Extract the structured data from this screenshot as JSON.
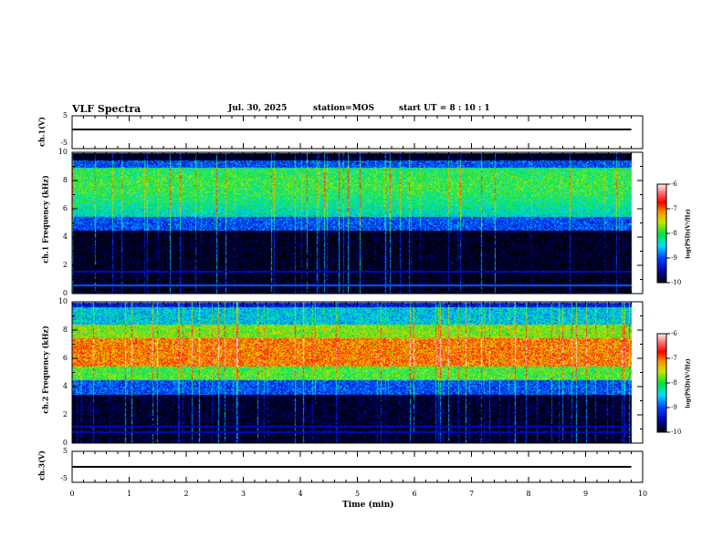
{
  "header": {
    "title": "VLF Spectra",
    "date": "Jul. 30, 2025",
    "station": "station=MOS",
    "start": "start UT =  8 : 10 : 1"
  },
  "chart_data": [
    {
      "type": "line",
      "name": "ch1-waveform",
      "ylabel": "ch.1(V)",
      "ylim": [
        -5,
        5
      ],
      "yticks": [
        "5",
        "-5"
      ],
      "xlim": [
        0,
        10
      ],
      "description_value": "flat near 0 V"
    },
    {
      "type": "heatmap",
      "name": "ch1-spectrogram",
      "ylabel": "ch.1 Frequency (kHz)",
      "ylim": [
        0,
        10
      ],
      "yticks": [
        "0",
        "2",
        "4",
        "6",
        "8",
        "10"
      ],
      "xlim": [
        0,
        9.8
      ],
      "colorbar": {
        "label": "log(PSD)(V²/Hz)",
        "range": [
          -10,
          -6
        ],
        "ticks": [
          "-6",
          "-7",
          "-8",
          "-9",
          "-10"
        ]
      },
      "bands": [
        {
          "from_khz": 5,
          "to_khz": 9.5,
          "level": -8.2
        },
        {
          "from_khz": 0,
          "to_khz": 4.5,
          "level": -10
        }
      ],
      "lines_khz": [
        0.6,
        1.6
      ]
    },
    {
      "type": "heatmap",
      "name": "ch2-spectrogram",
      "ylabel": "ch.2 Frequency (kHz)",
      "ylim": [
        0,
        10
      ],
      "yticks": [
        "0",
        "2",
        "4",
        "6",
        "8",
        "10"
      ],
      "xlim": [
        0,
        9.8
      ],
      "colorbar": {
        "label": "log(PSD)(V²/Hz)",
        "range": [
          -10,
          -6
        ],
        "ticks": [
          "-6",
          "-7",
          "-8",
          "-9",
          "-10"
        ]
      },
      "bands": [
        {
          "from_khz": 5.5,
          "to_khz": 7.5,
          "level": -7
        },
        {
          "from_khz": 4,
          "to_khz": 9.5,
          "level": -8
        },
        {
          "from_khz": 0,
          "to_khz": 3.5,
          "level": -10
        }
      ],
      "lines_khz": [
        0.8,
        1.2
      ]
    },
    {
      "type": "line",
      "name": "ch3-waveform",
      "ylabel": "ch.3(V)",
      "ylim": [
        -5,
        5
      ],
      "yticks": [
        "5",
        "-5"
      ],
      "xlim": [
        0,
        10
      ],
      "description_value": "flat near 0 V"
    }
  ],
  "xaxis": {
    "label": "Time (min)",
    "ticks": [
      "0",
      "1",
      "2",
      "3",
      "4",
      "5",
      "6",
      "7",
      "8",
      "9",
      "10"
    ]
  }
}
